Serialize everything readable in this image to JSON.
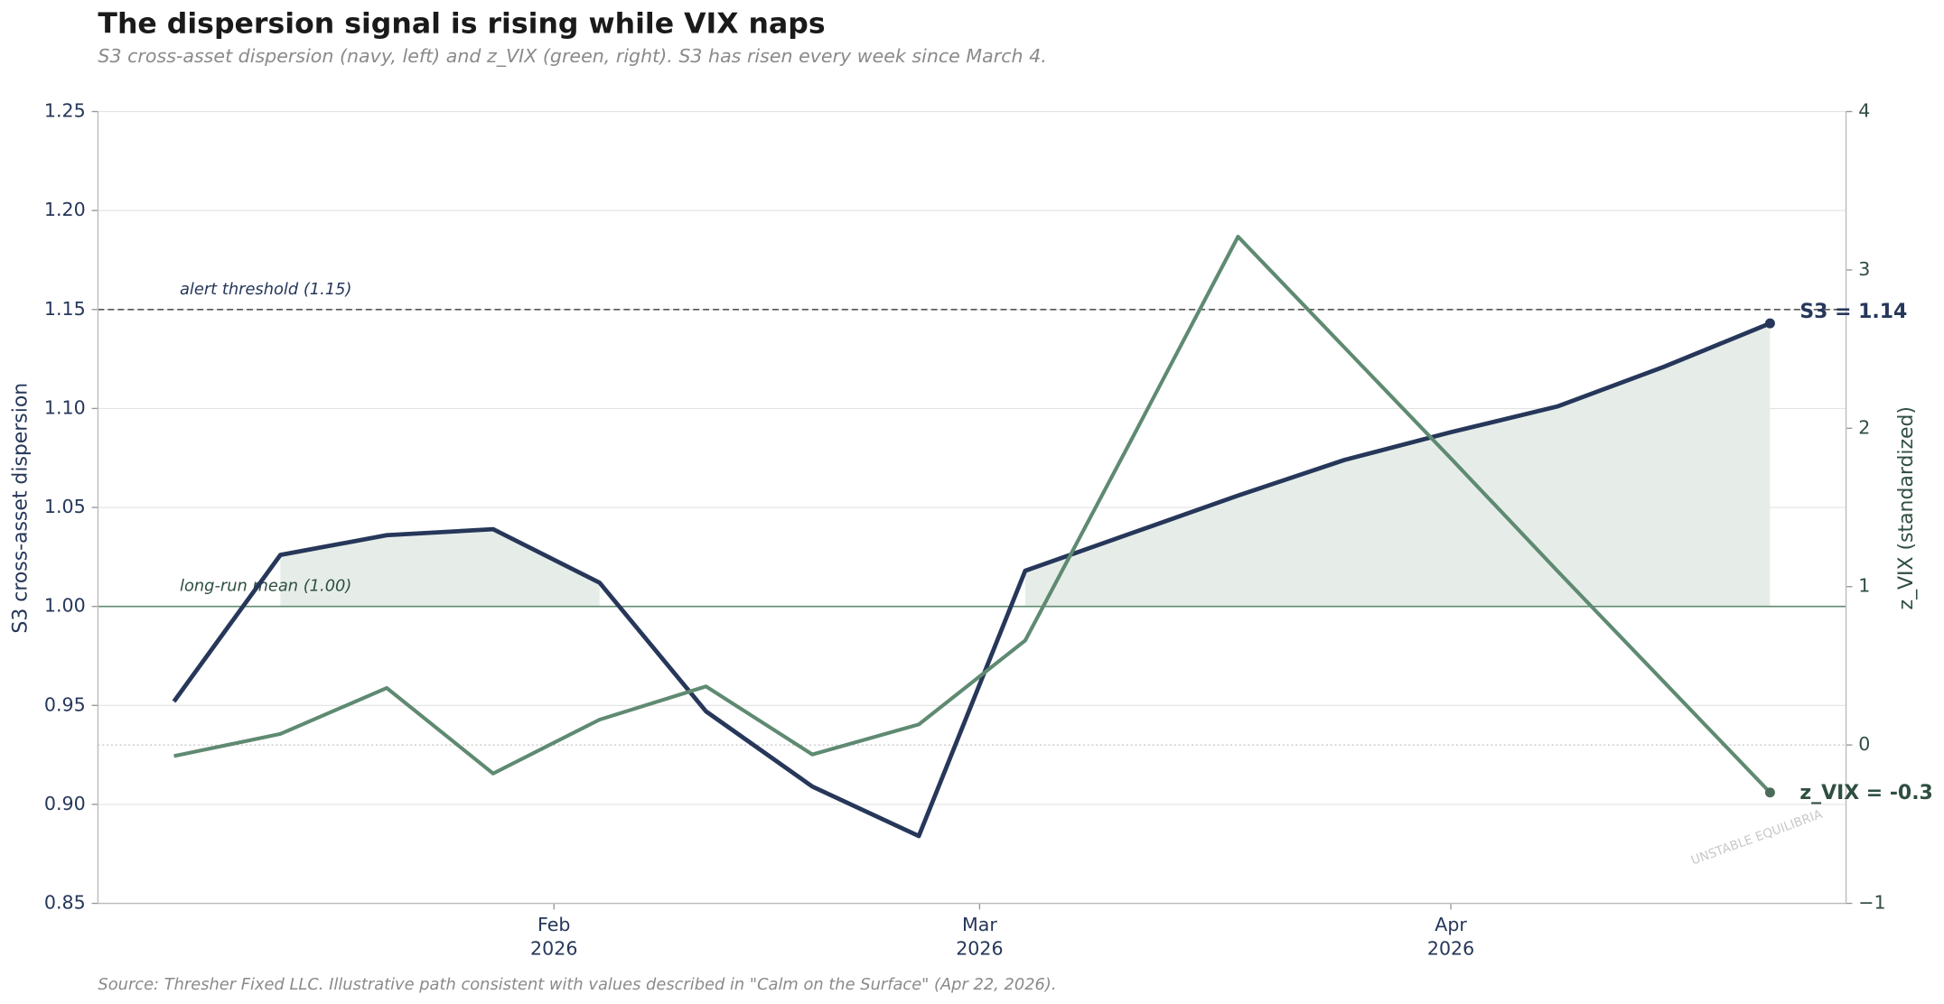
{
  "chart_data": {
    "type": "line",
    "title": "The dispersion signal is rising while VIX naps",
    "subtitle": "S3 cross-asset dispersion (navy, left) and z_VIX (green, right). S3 has risen every week since March 4.",
    "source": "Source: Thresher Fixed LLC. Illustrative path consistent with values described in \"Calm on the Surface\" (Apr 22, 2026).",
    "y_label": "S3 cross-asset dispersion",
    "y2_label": "z_VIX (standardized)",
    "watermark": "UNSTABLE EQUILIBRIA",
    "x": [
      "2026-01-07",
      "2026-01-14",
      "2026-01-21",
      "2026-01-28",
      "2026-02-04",
      "2026-02-11",
      "2026-02-18",
      "2026-02-25",
      "2026-03-04",
      "2026-03-11",
      "2026-03-18",
      "2026-03-25",
      "2026-04-01",
      "2026-04-08",
      "2026-04-15",
      "2026-04-22"
    ],
    "series": [
      {
        "name": "S3",
        "color": "#26375a",
        "axis": "y",
        "end_label": "S3 = 1.14",
        "values": [
          0.952,
          1.026,
          1.036,
          1.039,
          1.012,
          0.947,
          0.909,
          0.884,
          1.018,
          1.037,
          1.056,
          1.074,
          1.088,
          1.101,
          1.121,
          1.143
        ]
      },
      {
        "name": "z_VIX",
        "color": "#5f8a72",
        "axis": "y2",
        "end_label": "z_VIX = -0.3",
        "values": [
          -0.07,
          0.07,
          0.36,
          -0.18,
          0.16,
          0.37,
          -0.06,
          0.13,
          0.66,
          1.93,
          3.21,
          2.51,
          1.81,
          1.1,
          0.4,
          -0.3
        ]
      }
    ],
    "xlim": [
      "2026-01-02",
      "2026-04-27"
    ],
    "xticks": [
      {
        "value": "2026-02-01",
        "label": [
          "Feb",
          "2026"
        ]
      },
      {
        "value": "2026-03-01",
        "label": [
          "Mar",
          "2026"
        ]
      },
      {
        "value": "2026-04-01",
        "label": [
          "Apr",
          "2026"
        ]
      }
    ],
    "ylim": [
      0.85,
      1.25
    ],
    "yticks": [
      {
        "value": 0.85,
        "label": "0.85"
      },
      {
        "value": 0.9,
        "label": "0.90"
      },
      {
        "value": 0.95,
        "label": "0.95"
      },
      {
        "value": 1.0,
        "label": "1.00"
      },
      {
        "value": 1.05,
        "label": "1.05"
      },
      {
        "value": 1.1,
        "label": "1.10"
      },
      {
        "value": 1.15,
        "label": "1.15"
      },
      {
        "value": 1.2,
        "label": "1.20"
      },
      {
        "value": 1.25,
        "label": "1.25"
      }
    ],
    "y2lim": [
      -1,
      4
    ],
    "y2ticks": [
      {
        "value": -1,
        "label": "−1"
      },
      0,
      1,
      2,
      3,
      4
    ],
    "grid": true,
    "reference_lines": [
      {
        "value": 1.15,
        "label": "alert threshold (1.15)",
        "style": "dashed",
        "color": "#555555"
      },
      {
        "value": 1.0,
        "label": "long-run mean (1.00)",
        "style": "solid",
        "color": "#5f8a72"
      }
    ],
    "shade_color": "#e6ede8"
  }
}
